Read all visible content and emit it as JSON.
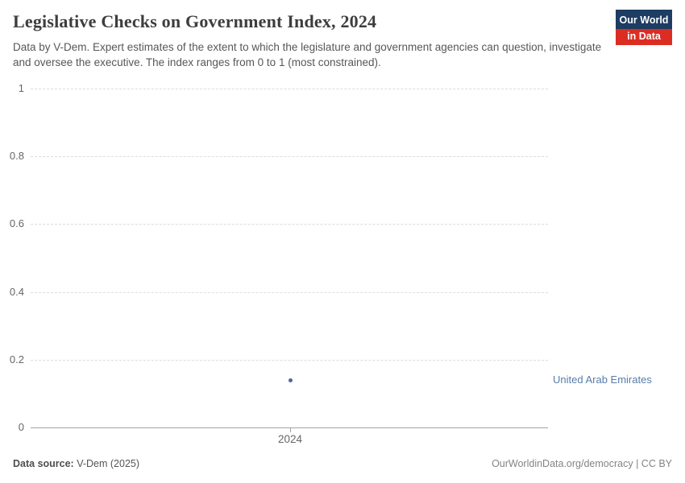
{
  "header": {
    "title": "Legislative Checks on Government Index, 2024",
    "subtitle": "Data by V-Dem. Expert estimates of the extent to which the legislature and government agencies can question, investigate and oversee the executive. The index ranges from 0 to 1 (most constrained).",
    "logo_line1": "Our World",
    "logo_line2": "in Data"
  },
  "chart_data": {
    "type": "scatter",
    "title": "Legislative Checks on Government Index, 2024",
    "x": [
      2024
    ],
    "series": [
      {
        "name": "United Arab Emirates",
        "values": [
          0.14
        ]
      }
    ],
    "xlabel": "",
    "ylabel": "",
    "ylim": [
      0,
      1
    ],
    "yticks": [
      {
        "value": 0,
        "label": "0"
      },
      {
        "value": 0.2,
        "label": "0.2"
      },
      {
        "value": 0.4,
        "label": "0.4"
      },
      {
        "value": 0.6,
        "label": "0.6"
      },
      {
        "value": 0.8,
        "label": "0.8"
      },
      {
        "value": 1,
        "label": "1"
      }
    ],
    "xticks": [
      {
        "value": 2024,
        "label": "2024"
      }
    ],
    "grid": "horizontal-dashed",
    "legend_position": "entity-label-right-of-plot"
  },
  "colors": {
    "point": "#4c6a9c",
    "entity_label": "#577eab",
    "logo_bg": "#1d3d63",
    "logo_red": "#dc2d23",
    "gridline": "#dcdcdc",
    "axis": "#a3a3a3"
  },
  "footer": {
    "source_label": "Data source:",
    "source_value": " V-Dem (2025)",
    "link": "OurWorldinData.org/democracy",
    "license": " | CC BY"
  }
}
